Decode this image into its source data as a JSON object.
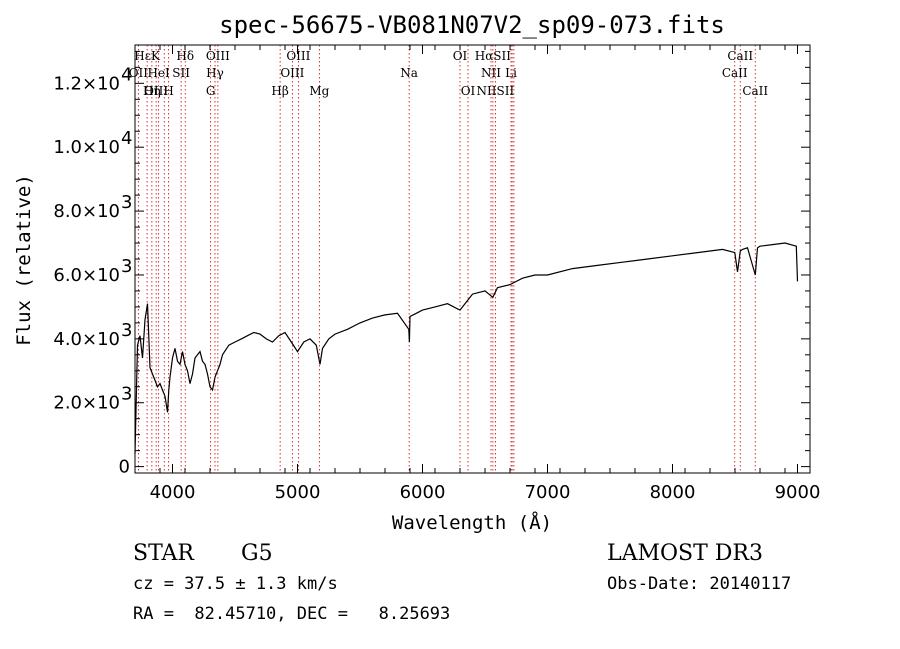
{
  "colors": {
    "axes": "#000000",
    "spectrum": "#000000",
    "line_marker": "#cc0000",
    "background": "#ffffff"
  },
  "chart_data": {
    "type": "line",
    "title": "spec-56675-VB081N07V2_sp09-073.fits",
    "xlabel": "Wavelength (Å)",
    "ylabel": "Flux (relative)",
    "xlim": [
      3700,
      9100
    ],
    "ylim": [
      -200,
      13200
    ],
    "x_ticks": [
      {
        "value": 4000,
        "label": "4000"
      },
      {
        "value": 5000,
        "label": "5000"
      },
      {
        "value": 6000,
        "label": "6000"
      },
      {
        "value": 7000,
        "label": "7000"
      },
      {
        "value": 8000,
        "label": "8000"
      },
      {
        "value": 9000,
        "label": "9000"
      }
    ],
    "y_ticks": [
      {
        "value": 0,
        "label": "0",
        "exp": ""
      },
      {
        "value": 2000,
        "label": "2.0×10",
        "exp": "3"
      },
      {
        "value": 4000,
        "label": "4.0×10",
        "exp": "3"
      },
      {
        "value": 6000,
        "label": "6.0×10",
        "exp": "3"
      },
      {
        "value": 8000,
        "label": "8.0×10",
        "exp": "3"
      },
      {
        "value": 10000,
        "label": "1.0×10",
        "exp": "4"
      },
      {
        "value": 12000,
        "label": "1.2×10",
        "exp": "4"
      }
    ],
    "spectrum": {
      "x": [
        3700,
        3720,
        3740,
        3760,
        3780,
        3800,
        3820,
        3840,
        3860,
        3880,
        3900,
        3920,
        3940,
        3960,
        3970,
        3980,
        4000,
        4020,
        4040,
        4060,
        4080,
        4100,
        4120,
        4140,
        4160,
        4180,
        4200,
        4220,
        4240,
        4260,
        4280,
        4300,
        4320,
        4340,
        4360,
        4380,
        4400,
        4450,
        4500,
        4550,
        4600,
        4650,
        4700,
        4750,
        4800,
        4850,
        4900,
        4950,
        5000,
        5050,
        5100,
        5150,
        5180,
        5200,
        5250,
        5300,
        5400,
        5500,
        5600,
        5700,
        5800,
        5890,
        5895,
        5900,
        5950,
        6000,
        6100,
        6200,
        6300,
        6400,
        6500,
        6562,
        6600,
        6700,
        6800,
        6900,
        7000,
        7200,
        7400,
        7600,
        7800,
        8000,
        8200,
        8400,
        8498,
        8520,
        8542,
        8560,
        8600,
        8662,
        8680,
        8700,
        8800,
        8900,
        8990,
        9000
      ],
      "y": [
        400,
        3800,
        4100,
        3400,
        4600,
        5100,
        3100,
        2900,
        2700,
        2500,
        2600,
        2400,
        2200,
        1700,
        2400,
        2800,
        3400,
        3700,
        3300,
        3200,
        3600,
        3200,
        3000,
        2600,
        2900,
        3400,
        3500,
        3600,
        3300,
        3200,
        2900,
        2500,
        2400,
        2800,
        3000,
        3200,
        3500,
        3800,
        3900,
        4000,
        4100,
        4200,
        4150,
        4000,
        3900,
        4100,
        4200,
        3900,
        3600,
        3900,
        4000,
        3800,
        3200,
        3700,
        4000,
        4150,
        4300,
        4500,
        4650,
        4750,
        4800,
        4300,
        3900,
        4700,
        4800,
        4900,
        5000,
        5100,
        4900,
        5400,
        5500,
        5300,
        5600,
        5700,
        5900,
        6000,
        6000,
        6200,
        6300,
        6400,
        6500,
        6600,
        6700,
        6800,
        6700,
        6100,
        6750,
        6800,
        6850,
        6000,
        6850,
        6900,
        6950,
        7000,
        6900,
        5800
      ]
    },
    "line_markers": [
      {
        "name": "Hε",
        "x": 3797,
        "row": 0,
        "label": "HεK"
      },
      {
        "name": "OII",
        "x": 3727,
        "row": 1,
        "label": "OII"
      },
      {
        "name": "K",
        "x": 3934,
        "row": 0,
        "label": ""
      },
      {
        "name": "Heε",
        "x": 3889,
        "row": 1,
        "label": "HeI"
      },
      {
        "name": "SII",
        "x": 4069,
        "row": 1,
        "label": "SII"
      },
      {
        "name": "OIII",
        "x": 3869,
        "row": 2,
        "label": "OIII"
      },
      {
        "name": "Hη",
        "x": 3835,
        "row": 2,
        "label": "Hη"
      },
      {
        "name": "H",
        "x": 3969,
        "row": 2,
        "label": "H"
      },
      {
        "name": "Hδ",
        "x": 4102,
        "row": 0,
        "label": "Hδ"
      },
      {
        "name": "OIII",
        "x": 4363,
        "row": 0,
        "label": "OIII"
      },
      {
        "name": "Hγ",
        "x": 4340,
        "row": 1,
        "label": "Hγ"
      },
      {
        "name": "G",
        "x": 4305,
        "row": 2,
        "label": "G"
      },
      {
        "name": "Hβ",
        "x": 4861,
        "row": 2,
        "label": "Hβ"
      },
      {
        "name": "OIII",
        "x": 5007,
        "row": 0,
        "label": "OIII"
      },
      {
        "name": "OIII",
        "x": 4959,
        "row": 1,
        "label": "OIII"
      },
      {
        "name": "Mg",
        "x": 5175,
        "row": 2,
        "label": "Mg"
      },
      {
        "name": "Na",
        "x": 5893,
        "row": 1,
        "label": "Na"
      },
      {
        "name": "OI",
        "x": 6300,
        "row": 0,
        "label": "OI"
      },
      {
        "name": "OI",
        "x": 6364,
        "row": 2,
        "label": "OI"
      },
      {
        "name": "Hα",
        "x": 6563,
        "row": 0,
        "label": "HαSII"
      },
      {
        "name": "NII",
        "x": 6548,
        "row": 1,
        "label": "NII"
      },
      {
        "name": "NII",
        "x": 6583,
        "row": 2,
        "label": "NIISII"
      },
      {
        "name": "SII",
        "x": 6717,
        "row": 0,
        "label": ""
      },
      {
        "name": "Li",
        "x": 6708,
        "row": 1,
        "label": "Li"
      },
      {
        "name": "SII",
        "x": 6731,
        "row": 2,
        "label": ""
      },
      {
        "name": "CaII",
        "x": 8542,
        "row": 0,
        "label": "CaII"
      },
      {
        "name": "CaII",
        "x": 8498,
        "row": 1,
        "label": "CaII"
      },
      {
        "name": "CaII",
        "x": 8662,
        "row": 2,
        "label": "CaII"
      }
    ]
  },
  "info": {
    "object_type": "STAR",
    "subclass": "G5",
    "survey": "LAMOST DR3",
    "redshift": "cz = 37.5 ± 1.3 km/s",
    "obs_date": "Obs-Date: 20140117",
    "coords": "RA =  82.45710, DEC =   8.25693"
  }
}
